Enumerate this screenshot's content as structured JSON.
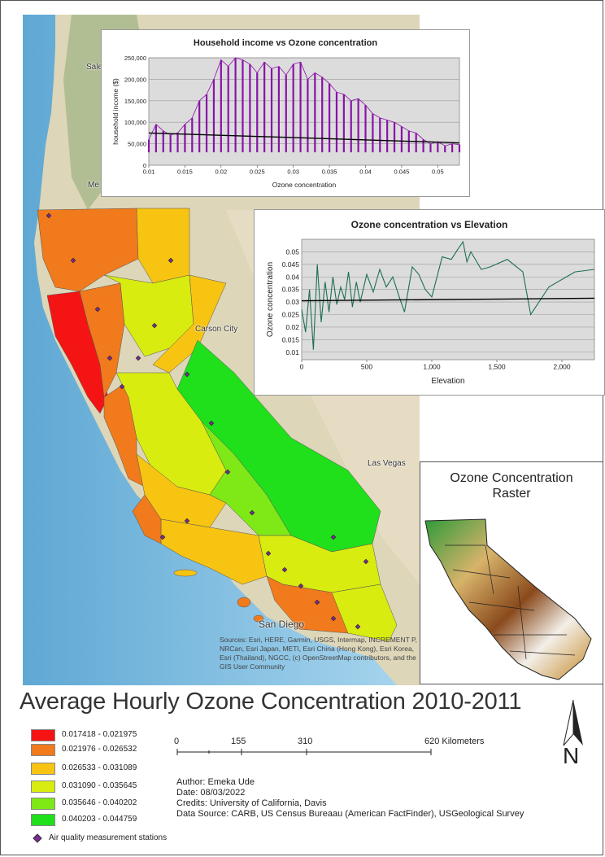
{
  "title": "Average Hourly Ozone Concentration 2010-2011",
  "legend": {
    "classes": [
      {
        "label": "0.017418 - 0.021975",
        "color": "#f51414"
      },
      {
        "label": "0.021976 - 0.026532",
        "color": "#f07a1c"
      },
      {
        "label": "0.026533 - 0.031089",
        "color": "#f7c412"
      },
      {
        "label": "0.031090 - 0.035645",
        "color": "#d8ec10"
      },
      {
        "label": "0.035646 - 0.040202",
        "color": "#7fe817"
      },
      {
        "label": "0.040203 - 0.044759",
        "color": "#1fe01b"
      }
    ],
    "stations_label": "Air quality measurement stations",
    "stations_color": "#7a2b95"
  },
  "scalebar": {
    "ticks": [
      "0",
      "155",
      "310",
      "620 Kilometers"
    ]
  },
  "credits": {
    "author": "Author: Emeka Ude",
    "date": "Date: 08/03/2022",
    "credits": "Credits: University of California, Davis",
    "source": "Data Source: CARB, US Census Bureaau (American FactFinder), USGeological Survey"
  },
  "north_label": "N",
  "map_labels": {
    "carson_city": "Carson City",
    "las_vegas": "Las Vegas",
    "san_diego": "San Diego",
    "salem_partial": "Sale",
    "medford_partial": "Me"
  },
  "basemap_credit": "Sources: Esri, HERE, Garmin, USGS, Intermap, INCREMENT P, NRCan, Esri Japan, METI, Esri China (Hong Kong), Esri Korea, Esri (Thailand), NGCC, (c) OpenStreetMap contributors, and the GIS User Community",
  "raster_inset": {
    "title_line1": "Ozone Concentration",
    "title_line2": "Raster"
  },
  "chart_data": [
    {
      "type": "line",
      "title": "Household income vs Ozone concentration",
      "xlabel": "Ozone concentration",
      "ylabel": "household income ($)",
      "xlim": [
        0.01,
        0.053
      ],
      "ylim": [
        0,
        250000
      ],
      "xticks": [
        "0.01",
        "0.015",
        "0.02",
        "0.025",
        "0.03",
        "0.035",
        "0.04",
        "0.045",
        "0.05"
      ],
      "yticks": [
        "0",
        "50,000",
        "100,000",
        "150,000",
        "200,000",
        "250,000"
      ],
      "series": [
        {
          "values_x": [
            0.01,
            0.011,
            0.012,
            0.013,
            0.014,
            0.015,
            0.016,
            0.017,
            0.018,
            0.019,
            0.02,
            0.021,
            0.022,
            0.023,
            0.024,
            0.025,
            0.026,
            0.027,
            0.028,
            0.029,
            0.03,
            0.031,
            0.032,
            0.033,
            0.034,
            0.035,
            0.036,
            0.037,
            0.038,
            0.039,
            0.04,
            0.041,
            0.042,
            0.043,
            0.044,
            0.045,
            0.046,
            0.047,
            0.048,
            0.049,
            0.05,
            0.051,
            0.052,
            0.053
          ],
          "values_y": [
            60000,
            95000,
            80000,
            70000,
            75000,
            95000,
            110000,
            150000,
            165000,
            200000,
            245000,
            230000,
            250000,
            245000,
            235000,
            215000,
            240000,
            225000,
            230000,
            210000,
            235000,
            240000,
            200000,
            215000,
            205000,
            190000,
            170000,
            165000,
            150000,
            155000,
            140000,
            120000,
            110000,
            105000,
            100000,
            90000,
            80000,
            75000,
            60000,
            50000,
            55000,
            45000,
            50000,
            48000
          ],
          "color": "#8a12a8"
        }
      ],
      "trendline": {
        "x": [
          0.01,
          0.053
        ],
        "y": [
          75000,
          52000
        ],
        "color": "#000000"
      }
    },
    {
      "type": "line",
      "title": "Ozone concentration vs Elevation",
      "xlabel": "Elevation",
      "ylabel": "Ozone concentration",
      "xlim": [
        0,
        2250
      ],
      "ylim": [
        0.007,
        0.055
      ],
      "xticks": [
        "0",
        "500",
        "1,000",
        "1,500",
        "2,000"
      ],
      "yticks": [
        "0.01",
        "0.015",
        "0.02",
        "0.025",
        "0.03",
        "0.035",
        "0.04",
        "0.045",
        "0.05"
      ],
      "series": [
        {
          "values_x": [
            0,
            30,
            60,
            90,
            120,
            150,
            180,
            210,
            240,
            270,
            300,
            330,
            360,
            390,
            420,
            450,
            500,
            550,
            600,
            650,
            700,
            750,
            790,
            850,
            900,
            950,
            1000,
            1080,
            1150,
            1200,
            1240,
            1270,
            1300,
            1380,
            1450,
            1580,
            1700,
            1760,
            1900,
            2100,
            2250
          ],
          "values_y": [
            0.027,
            0.018,
            0.035,
            0.011,
            0.045,
            0.022,
            0.038,
            0.026,
            0.04,
            0.029,
            0.036,
            0.031,
            0.042,
            0.028,
            0.038,
            0.03,
            0.041,
            0.034,
            0.043,
            0.036,
            0.04,
            0.032,
            0.026,
            0.044,
            0.041,
            0.035,
            0.032,
            0.048,
            0.047,
            0.051,
            0.054,
            0.046,
            0.05,
            0.043,
            0.044,
            0.047,
            0.042,
            0.025,
            0.036,
            0.042,
            0.043
          ],
          "color": "#1d6e54"
        }
      ],
      "trendline": {
        "x": [
          0,
          2250
        ],
        "y": [
          0.0305,
          0.0315
        ],
        "color": "#000000"
      }
    }
  ]
}
